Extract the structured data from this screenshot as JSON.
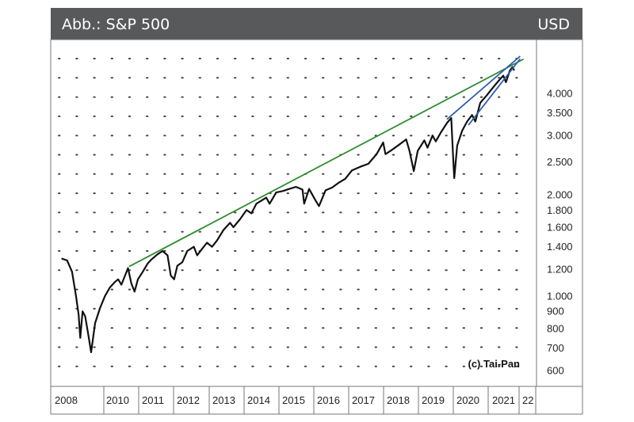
{
  "header": {
    "title": "Abb.: S&P 500",
    "currency": "USD"
  },
  "colors": {
    "header_bg": "#58595b",
    "price_line": "#111111",
    "trend_green": "#2e8b2e",
    "trend_blue": "#2d5fb0",
    "grid_dots": "#444444",
    "border": "#777777"
  },
  "chart_data": {
    "type": "line",
    "title": "Abb.: S&P 500",
    "unit": "USD",
    "credit": "(c) Tai-Pan",
    "y_scale": "log",
    "ylim": [
      560,
      5300
    ],
    "grid": "dotted",
    "yticks": [
      {
        "value": 4000,
        "label": "4.000"
      },
      {
        "value": 3500,
        "label": "3.500"
      },
      {
        "value": 3000,
        "label": "3.000"
      },
      {
        "value": 2500,
        "label": "2.500"
      },
      {
        "value": 2000,
        "label": "2.000"
      },
      {
        "value": 1800,
        "label": "1.800"
      },
      {
        "value": 1600,
        "label": "1.600"
      },
      {
        "value": 1400,
        "label": "1.400"
      },
      {
        "value": 1200,
        "label": "1.200"
      },
      {
        "value": 1000,
        "label": "1.000"
      },
      {
        "value": 900,
        "label": "900"
      },
      {
        "value": 800,
        "label": "800"
      },
      {
        "value": 700,
        "label": "700"
      },
      {
        "value": 600,
        "label": "600"
      }
    ],
    "x_axis_labels": [
      "2008",
      "2010",
      "2011",
      "2012",
      "2013",
      "2014",
      "2015",
      "2016",
      "2017",
      "2018",
      "2019",
      "2020",
      "2021",
      "22"
    ],
    "series": [
      {
        "type": "line",
        "points": [
          [
            2008.3,
            1290
          ],
          [
            2008.45,
            1275
          ],
          [
            2008.6,
            1180
          ],
          [
            2008.72,
            1000
          ],
          [
            2008.8,
            880
          ],
          [
            2008.85,
            750
          ],
          [
            2008.92,
            900
          ],
          [
            2009.0,
            870
          ],
          [
            2009.1,
            760
          ],
          [
            2009.18,
            680
          ],
          [
            2009.3,
            830
          ],
          [
            2009.45,
            920
          ],
          [
            2009.6,
            1000
          ],
          [
            2009.75,
            1060
          ],
          [
            2009.9,
            1100
          ],
          [
            2010.0,
            1120
          ],
          [
            2010.1,
            1080
          ],
          [
            2010.3,
            1210
          ],
          [
            2010.4,
            1090
          ],
          [
            2010.5,
            1030
          ],
          [
            2010.6,
            1120
          ],
          [
            2010.75,
            1180
          ],
          [
            2010.9,
            1250
          ],
          [
            2011.0,
            1280
          ],
          [
            2011.2,
            1330
          ],
          [
            2011.35,
            1360
          ],
          [
            2011.5,
            1320
          ],
          [
            2011.6,
            1150
          ],
          [
            2011.7,
            1120
          ],
          [
            2011.8,
            1230
          ],
          [
            2011.95,
            1260
          ],
          [
            2012.1,
            1360
          ],
          [
            2012.3,
            1400
          ],
          [
            2012.4,
            1320
          ],
          [
            2012.55,
            1380
          ],
          [
            2012.7,
            1440
          ],
          [
            2012.85,
            1400
          ],
          [
            2013.0,
            1460
          ],
          [
            2013.2,
            1570
          ],
          [
            2013.4,
            1650
          ],
          [
            2013.5,
            1600
          ],
          [
            2013.7,
            1690
          ],
          [
            2013.9,
            1800
          ],
          [
            2014.05,
            1760
          ],
          [
            2014.2,
            1880
          ],
          [
            2014.5,
            1960
          ],
          [
            2014.6,
            1880
          ],
          [
            2014.8,
            2030
          ],
          [
            2015.0,
            2050
          ],
          [
            2015.2,
            2080
          ],
          [
            2015.4,
            2110
          ],
          [
            2015.6,
            2070
          ],
          [
            2015.65,
            1880
          ],
          [
            2015.8,
            2080
          ],
          [
            2016.0,
            1920
          ],
          [
            2016.1,
            1850
          ],
          [
            2016.3,
            2060
          ],
          [
            2016.5,
            2100
          ],
          [
            2016.7,
            2170
          ],
          [
            2016.9,
            2230
          ],
          [
            2017.1,
            2360
          ],
          [
            2017.35,
            2420
          ],
          [
            2017.6,
            2470
          ],
          [
            2017.85,
            2640
          ],
          [
            2018.05,
            2860
          ],
          [
            2018.12,
            2640
          ],
          [
            2018.3,
            2710
          ],
          [
            2018.5,
            2800
          ],
          [
            2018.75,
            2920
          ],
          [
            2018.85,
            2700
          ],
          [
            2018.98,
            2350
          ],
          [
            2019.1,
            2700
          ],
          [
            2019.3,
            2900
          ],
          [
            2019.4,
            2760
          ],
          [
            2019.55,
            3000
          ],
          [
            2019.65,
            2880
          ],
          [
            2019.8,
            3060
          ],
          [
            2020.0,
            3280
          ],
          [
            2020.12,
            3380
          ],
          [
            2020.18,
            2550
          ],
          [
            2020.21,
            2240
          ],
          [
            2020.3,
            2800
          ],
          [
            2020.45,
            3100
          ],
          [
            2020.6,
            3300
          ],
          [
            2020.75,
            3450
          ],
          [
            2020.85,
            3300
          ],
          [
            2021.0,
            3750
          ],
          [
            2021.2,
            3950
          ],
          [
            2021.4,
            4180
          ],
          [
            2021.55,
            4350
          ],
          [
            2021.7,
            4520
          ],
          [
            2021.78,
            4320
          ],
          [
            2021.9,
            4680
          ],
          [
            2021.98,
            4790
          ],
          [
            2022.02,
            4700
          ]
        ]
      },
      {
        "name": "",
        "type": "trendline",
        "points": [
          [
            2010.35,
            1225
          ],
          [
            2022.3,
            5050
          ]
        ]
      },
      {
        "name": "",
        "type": "trendline",
        "points": [
          [
            2020.0,
            3360
          ],
          [
            2022.2,
            5150
          ]
        ]
      },
      {
        "name": "",
        "type": "trendline",
        "points": [
          [
            2020.65,
            3230
          ],
          [
            2022.2,
            5050
          ]
        ]
      }
    ]
  }
}
